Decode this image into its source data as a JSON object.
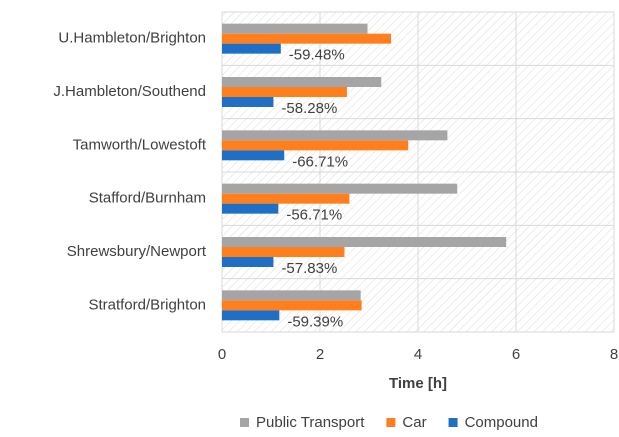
{
  "chart_data": {
    "type": "hbar",
    "xlabel": "Time [h]",
    "categories": [
      "U.Hambleton/Brighton",
      "J.Hambleton/Southend",
      "Tamworth/Lowestoft",
      "Stafford/Burnham",
      "Shrewsbury/Newport",
      "Stratford/Brighton"
    ],
    "series": [
      {
        "name": "Public Transport",
        "color": "#a5a5a5",
        "values": [
          2.97,
          3.25,
          4.6,
          4.8,
          5.8,
          2.83
        ]
      },
      {
        "name": "Car",
        "color": "#ff7f1e",
        "values": [
          3.45,
          2.55,
          3.8,
          2.6,
          2.5,
          2.85
        ]
      },
      {
        "name": "Compound",
        "color": "#1f6fc4",
        "values": [
          1.2,
          1.05,
          1.27,
          1.15,
          1.05,
          1.17
        ]
      }
    ],
    "annotations": [
      "-59.48%",
      "-58.28%",
      "-66.71%",
      "-56.71%",
      "-57.83%",
      "-59.39%"
    ],
    "xlim": [
      0,
      8
    ],
    "xticks": [
      0,
      2,
      4,
      6,
      8
    ],
    "grid": true
  }
}
